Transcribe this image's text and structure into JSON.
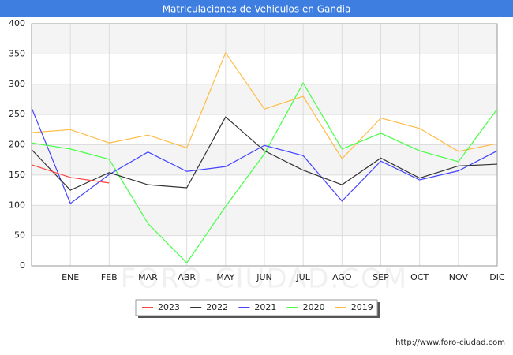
{
  "chart_data": {
    "type": "line",
    "title": "Matriculaciones de Vehiculos en Gandia",
    "categories": [
      null,
      "ENE",
      "FEB",
      "MAR",
      "ABR",
      "MAY",
      "JUN",
      "JUL",
      "AGO",
      "SEP",
      "OCT",
      "NOV",
      "DIC"
    ],
    "series": [
      {
        "name": "2023",
        "color": "#ff4444",
        "values": [
          167,
          146,
          137,
          null,
          null,
          null,
          null,
          null,
          null,
          null,
          null,
          null,
          null
        ]
      },
      {
        "name": "2022",
        "color": "#333333",
        "values": [
          192,
          125,
          154,
          134,
          129,
          246,
          190,
          158,
          134,
          178,
          145,
          165,
          168
        ]
      },
      {
        "name": "2021",
        "color": "#4444ff",
        "values": [
          261,
          103,
          151,
          188,
          156,
          164,
          199,
          182,
          107,
          173,
          142,
          157,
          190
        ]
      },
      {
        "name": "2020",
        "color": "#44ff44",
        "values": [
          203,
          193,
          176,
          70,
          5,
          98,
          185,
          302,
          193,
          219,
          190,
          172,
          259
        ]
      },
      {
        "name": "2019",
        "color": "#ffbb44",
        "values": [
          220,
          225,
          203,
          216,
          195,
          352,
          259,
          280,
          177,
          244,
          227,
          189,
          202
        ]
      }
    ],
    "ylim": [
      0,
      400
    ],
    "yticks": [
      0,
      50,
      100,
      150,
      200,
      250,
      300,
      350,
      400
    ],
    "grid": true,
    "legend": "bottom",
    "watermark": "FORO-CIUDAD.COM",
    "source": "http://www.foro-ciudad.com"
  }
}
